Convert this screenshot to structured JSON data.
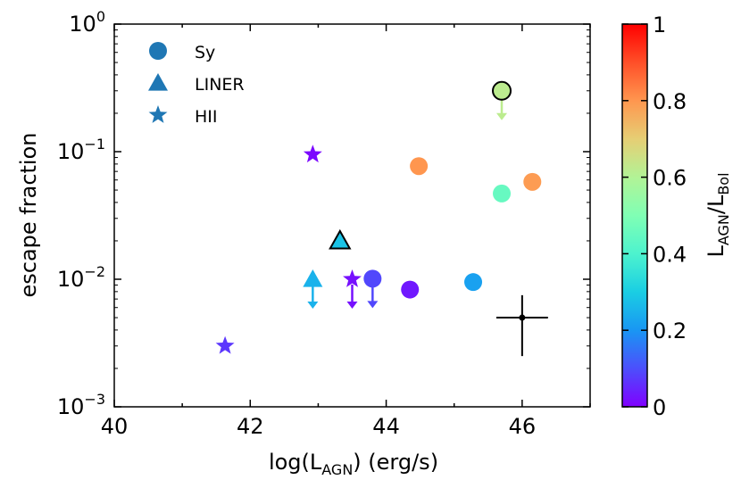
{
  "chart_data": {
    "type": "scatter",
    "title": "",
    "xlabel": {
      "base": "log(L",
      "sub": "AGN",
      "tail": ") (erg/s)"
    },
    "ylabel": "escape fraction",
    "xlim": [
      40,
      47
    ],
    "ylim": [
      0.001,
      1
    ],
    "yscale": "log",
    "x_ticks": [
      "40",
      "42",
      "44",
      "46"
    ],
    "y_ticks": [
      {
        "base": "10",
        "exp": "−3",
        "value": 0.001
      },
      {
        "base": "10",
        "exp": "−2",
        "value": 0.01
      },
      {
        "base": "10",
        "exp": "−1",
        "value": 0.1
      },
      {
        "base": "10",
        "exp": "0",
        "value": 1
      }
    ],
    "legend": {
      "placement": "top-left",
      "entries": [
        {
          "marker": "circle",
          "label": "Sy"
        },
        {
          "marker": "triangle",
          "label": "LINER"
        },
        {
          "marker": "star",
          "label": "HII"
        }
      ]
    },
    "colorbar": {
      "label_base": "L",
      "label_sub1": "AGN",
      "label_mid": "/L",
      "label_sub2": "Bol",
      "range": [
        0,
        1
      ],
      "ticks": [
        "0",
        "0.2",
        "0.4",
        "0.6",
        "0.8",
        "1"
      ],
      "colormap": "rainbow"
    },
    "points": [
      {
        "marker": "circle",
        "x": 45.7,
        "y": 0.3,
        "c": 0.62,
        "upper_limit": true,
        "edge": true
      },
      {
        "marker": "circle",
        "x": 44.48,
        "y": 0.077,
        "c": 0.8,
        "upper_limit": false,
        "edge": false
      },
      {
        "marker": "circle",
        "x": 45.7,
        "y": 0.047,
        "c": 0.45,
        "upper_limit": false,
        "edge": false
      },
      {
        "marker": "circle",
        "x": 46.15,
        "y": 0.058,
        "c": 0.79,
        "upper_limit": false,
        "edge": false
      },
      {
        "marker": "circle",
        "x": 43.8,
        "y": 0.0101,
        "c": 0.09,
        "upper_limit": true,
        "edge": false
      },
      {
        "marker": "circle",
        "x": 44.35,
        "y": 0.0083,
        "c": 0.03,
        "upper_limit": false,
        "edge": false
      },
      {
        "marker": "circle",
        "x": 45.28,
        "y": 0.0095,
        "c": 0.22,
        "upper_limit": false,
        "edge": false
      },
      {
        "marker": "triangle",
        "x": 43.32,
        "y": 0.02,
        "c": 0.28,
        "upper_limit": false,
        "edge": true
      },
      {
        "marker": "triangle",
        "x": 42.92,
        "y": 0.01,
        "c": 0.25,
        "upper_limit": true,
        "edge": false
      },
      {
        "marker": "star",
        "x": 42.92,
        "y": 0.095,
        "c": 0.01,
        "upper_limit": false,
        "edge": false
      },
      {
        "marker": "star",
        "x": 43.5,
        "y": 0.01,
        "c": 0.02,
        "upper_limit": true,
        "edge": false
      },
      {
        "marker": "star",
        "x": 41.63,
        "y": 0.003,
        "c": 0.07,
        "upper_limit": false,
        "edge": false
      }
    ],
    "errorbar_example": {
      "x": 46.0,
      "y": 0.005,
      "x_err": [
        45.62,
        46.38
      ],
      "y_err": [
        0.0025,
        0.0075
      ]
    }
  }
}
